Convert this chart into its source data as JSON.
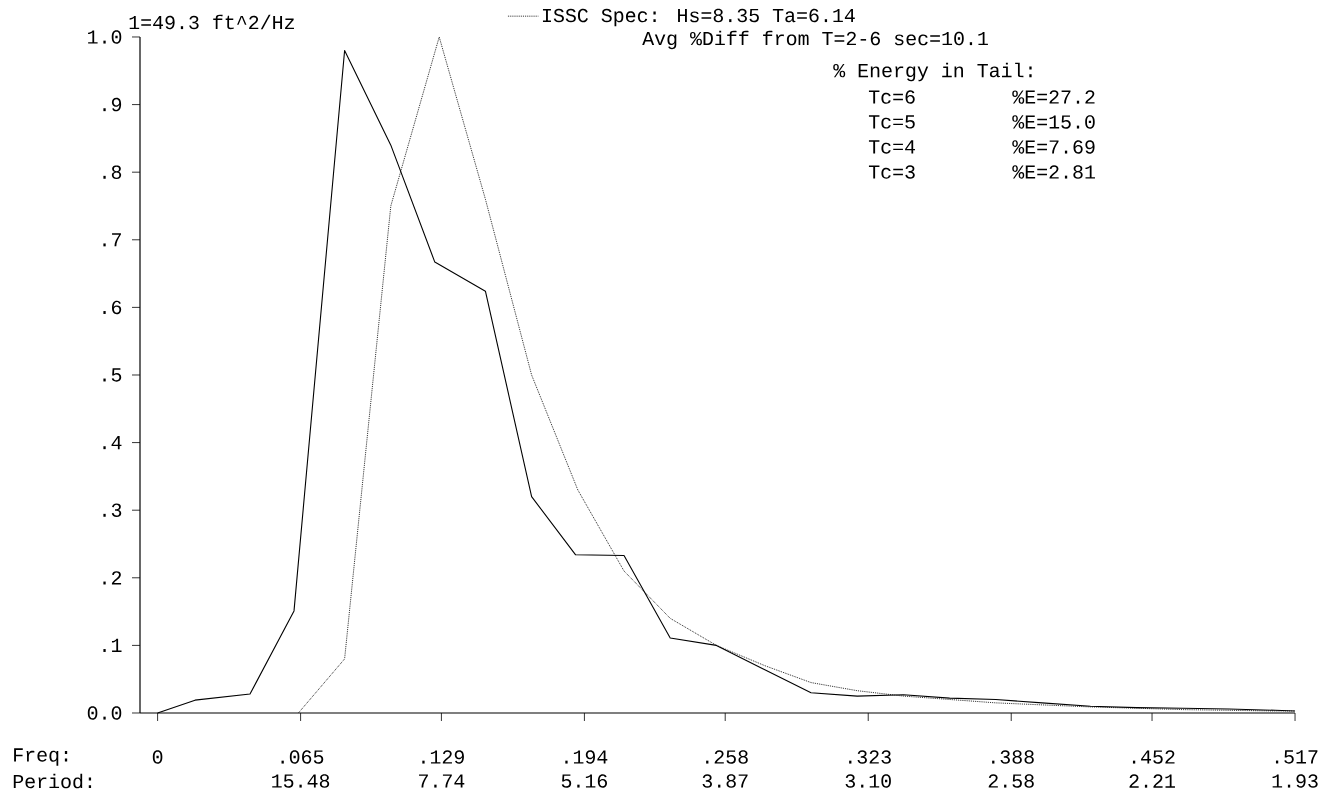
{
  "chart_data": {
    "type": "line",
    "title": "1=49.3 ft^2/Hz",
    "xlabel": "Freq:",
    "xlim": [
      -0.008,
      0.517
    ],
    "annotations": [
      "Avg %Diff from T=2-6 sec=10.1",
      "% Energy in Tail:",
      "Tc=6",
      "%E=27.2",
      "Tc=5",
      "%E=15.0",
      "Tc=4",
      "%E=7.69",
      "Tc=3",
      "%E=2.81",
      "Period:",
      "15.48",
      "7.74",
      "5.16",
      "3.87",
      "3.10",
      "2.58",
      "2.21",
      "1.93"
    ],
    "xticks": [
      0,
      {
        "value": 0.065,
        "label": ".065"
      },
      {
        "value": 0.129,
        "label": ".129"
      },
      {
        "value": 0.194,
        "label": ".194"
      },
      {
        "value": 0.258,
        "label": ".258"
      },
      {
        "value": 0.323,
        "label": ".323"
      },
      {
        "value": 0.388,
        "label": ".388"
      },
      {
        "value": 0.452,
        "label": ".452"
      },
      {
        "value": 0.517,
        "label": ".517"
      }
    ],
    "ylim": [
      0,
      1.0
    ],
    "yticks": [
      {
        "value": 0,
        "label": "0.0"
      },
      {
        "value": 0.1,
        "label": ".1"
      },
      {
        "value": 0.2,
        "label": ".2"
      },
      {
        "value": 0.3,
        "label": ".3"
      },
      {
        "value": 0.4,
        "label": ".4"
      },
      {
        "value": 0.5,
        "label": ".5"
      },
      {
        "value": 0.6,
        "label": ".6"
      },
      {
        "value": 0.7,
        "label": ".7"
      },
      {
        "value": 0.8,
        "label": ".8"
      },
      {
        "value": 0.9,
        "label": ".9"
      },
      {
        "value": 1.0,
        "label": "1.0"
      }
    ],
    "legend": "top right",
    "series": [
      {
        "color": "#000000",
        "line_style": "solid",
        "x": [
          0,
          0.017,
          0.042,
          0.062,
          0.085,
          0.106,
          0.126,
          0.149,
          0.17,
          0.19,
          0.212,
          0.233,
          0.254,
          0.276,
          0.297,
          0.318,
          0.339,
          0.36,
          0.381,
          0.402,
          0.424,
          0.445,
          0.466,
          0.487,
          0.508,
          0.517
        ],
        "values": [
          0.0,
          0.019,
          0.028,
          0.151,
          0.98,
          0.84,
          0.667,
          0.624,
          0.32,
          0.234,
          0.233,
          0.111,
          0.1,
          0.064,
          0.03,
          0.025,
          0.027,
          0.022,
          0.02,
          0.015,
          0.01,
          0.008,
          0.007,
          0.006,
          0.004,
          0.003
        ]
      },
      {
        "name": "ISSC Spec:  Hs=8.35  Ta=6.14",
        "color": "#000000",
        "line_style": "dotted",
        "x": [
          0.064,
          0.085,
          0.106,
          0.128,
          0.149,
          0.17,
          0.191,
          0.212,
          0.233,
          0.254,
          0.276,
          0.297,
          0.318,
          0.339,
          0.36,
          0.381,
          0.402,
          0.424,
          0.445,
          0.466,
          0.487,
          0.508,
          0.517
        ],
        "values": [
          0.0,
          0.08,
          0.75,
          1.0,
          0.76,
          0.5,
          0.33,
          0.21,
          0.14,
          0.1,
          0.07,
          0.045,
          0.033,
          0.025,
          0.02,
          0.015,
          0.012,
          0.009,
          0.007,
          0.005,
          0.004,
          0.003,
          0.003
        ]
      }
    ]
  }
}
